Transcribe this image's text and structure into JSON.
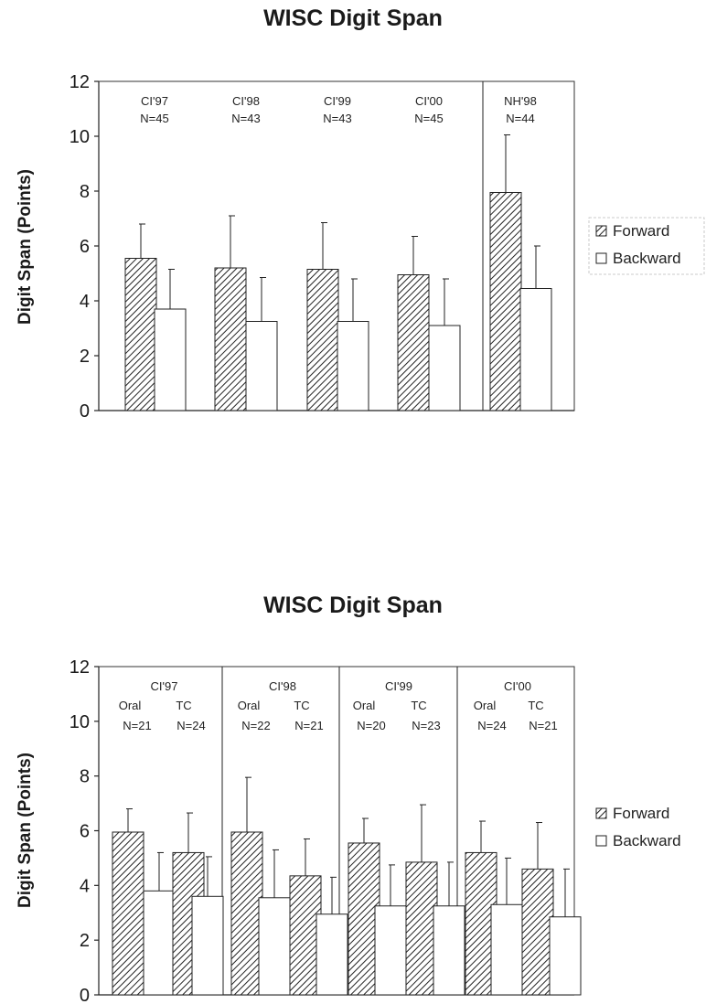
{
  "chart_data": [
    {
      "type": "bar",
      "title": "WISC Digit Span",
      "ylabel": "Digit Span (Points)",
      "ylim": [
        0,
        12
      ],
      "yticks": [
        "0",
        "2",
        "4",
        "6",
        "8",
        "10",
        "12"
      ],
      "legend": {
        "position": "right",
        "entries": [
          "Forward",
          "Backward"
        ]
      },
      "groups": [
        {
          "label": "CI'97",
          "sublabels": [],
          "n": [
            "N=45"
          ],
          "forward": [
            5.55
          ],
          "forward_err": [
            1.25
          ],
          "backward": [
            3.7
          ],
          "backward_err": [
            1.45
          ]
        },
        {
          "label": "CI'98",
          "sublabels": [],
          "n": [
            "N=43"
          ],
          "forward": [
            5.2
          ],
          "forward_err": [
            1.9
          ],
          "backward": [
            3.25
          ],
          "backward_err": [
            1.6
          ]
        },
        {
          "label": "CI'99",
          "sublabels": [],
          "n": [
            "N=43"
          ],
          "forward": [
            5.15
          ],
          "forward_err": [
            1.7
          ],
          "backward": [
            3.25
          ],
          "backward_err": [
            1.55
          ]
        },
        {
          "label": "CI'00",
          "sublabels": [],
          "n": [
            "N=45"
          ],
          "forward": [
            4.95
          ],
          "forward_err": [
            1.4
          ],
          "backward": [
            3.1
          ],
          "backward_err": [
            1.7
          ]
        },
        {
          "label": "NH'98",
          "sublabels": [],
          "n": [
            "N=44"
          ],
          "forward": [
            7.95
          ],
          "forward_err": [
            2.1
          ],
          "backward": [
            4.45
          ],
          "backward_err": [
            1.55
          ]
        }
      ]
    },
    {
      "type": "bar",
      "title": "WISC Digit Span",
      "ylabel": "Digit Span (Points)",
      "ylim": [
        0,
        12
      ],
      "yticks": [
        "0",
        "2",
        "4",
        "6",
        "8",
        "10",
        "12"
      ],
      "legend": {
        "position": "right",
        "entries": [
          "Forward",
          "Backward"
        ]
      },
      "groups": [
        {
          "label": "CI'97",
          "sublabels": [
            "Oral",
            "TC"
          ],
          "n": [
            "N=21",
            "N=24"
          ],
          "forward": [
            5.95,
            5.2
          ],
          "forward_err": [
            0.85,
            1.45
          ],
          "backward": [
            3.8,
            3.6
          ],
          "backward_err": [
            1.4,
            1.45
          ]
        },
        {
          "label": "CI'98",
          "sublabels": [
            "Oral",
            "TC"
          ],
          "n": [
            "N=22",
            "N=21"
          ],
          "forward": [
            5.95,
            4.35
          ],
          "forward_err": [
            2.0,
            1.35
          ],
          "backward": [
            3.55,
            2.95
          ],
          "backward_err": [
            1.75,
            1.35
          ]
        },
        {
          "label": "CI'99",
          "sublabels": [
            "Oral",
            "TC"
          ],
          "n": [
            "N=20",
            "N=23"
          ],
          "forward": [
            5.55,
            4.85
          ],
          "forward_err": [
            0.9,
            2.1
          ],
          "backward": [
            3.25,
            3.25
          ],
          "backward_err": [
            1.5,
            1.6
          ]
        },
        {
          "label": "CI'00",
          "sublabels": [
            "Oral",
            "TC"
          ],
          "n": [
            "N=24",
            "N=21"
          ],
          "forward": [
            5.2,
            4.6
          ],
          "forward_err": [
            1.15,
            1.7
          ],
          "backward": [
            3.3,
            2.85
          ],
          "backward_err": [
            1.7,
            1.75
          ]
        }
      ]
    }
  ]
}
